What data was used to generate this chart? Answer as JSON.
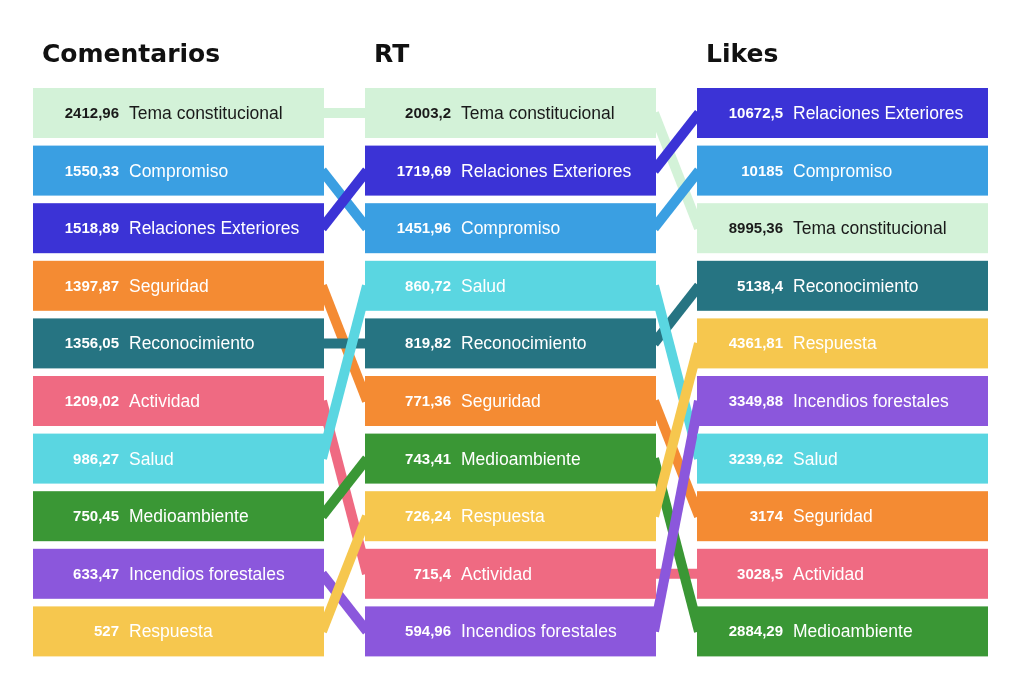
{
  "chart_data": {
    "type": "other",
    "categories": [
      "Tema constitucional",
      "Compromiso",
      "Relaciones Exteriores",
      "Seguridad",
      "Reconocimiento",
      "Actividad",
      "Salud",
      "Medioambiente",
      "Incendios forestales",
      "Respuesta"
    ],
    "series": [
      {
        "name": "Comentarios",
        "colors": [
          "#d3f2d8",
          "#3a9fe2",
          "#3b33d6",
          "#f48b33",
          "#267482",
          "#ef6a82",
          "#5ad6e1",
          "#3a9735",
          "#8b57dc",
          "#f6c74e"
        ],
        "values": [
          2412.96,
          1550.33,
          1518.89,
          1397.87,
          1356.05,
          1209.02,
          986.27,
          750.45,
          633.47,
          527
        ],
        "value_labels": [
          "2412,96",
          "1550,33",
          "1518,89",
          "1397,87",
          "1356,05",
          "1209,02",
          "986,27",
          "750,45",
          "633,47",
          "527"
        ]
      },
      {
        "name": "RT",
        "colors": [
          "#d3f2d8",
          "#3a9fe2",
          "#3b33d6",
          "#f48b33",
          "#267482",
          "#ef6a82",
          "#5ad6e1",
          "#3a9735",
          "#8b57dc",
          "#f6c74e"
        ],
        "values": [
          2003.2,
          1451.96,
          1719.69,
          771.36,
          819.82,
          715.4,
          860.72,
          743.41,
          594.96,
          726.24
        ],
        "value_labels": [
          "2003,2",
          "1451,96",
          "1719,69",
          "771,36",
          "819,82",
          "715,4",
          "860,72",
          "743,41",
          "594,96",
          "726,24"
        ]
      },
      {
        "name": "Likes",
        "colors": [
          "#d3f2d8",
          "#3a9fe2",
          "#3b33d6",
          "#f48b33",
          "#267482",
          "#ef6a82",
          "#5ad6e1",
          "#3a9735",
          "#8b57dc",
          "#f6c74e"
        ],
        "values": [
          8995.36,
          10185,
          10672.5,
          3174,
          5138.4,
          3028.5,
          3239.62,
          2884.29,
          3349.88,
          4361.81
        ],
        "value_labels": [
          "8995,36",
          "10185",
          "10672,5",
          "3174",
          "5138,4",
          "3028,5",
          "3239,62",
          "2884,29",
          "3349,88",
          "4361,81"
        ]
      }
    ]
  }
}
